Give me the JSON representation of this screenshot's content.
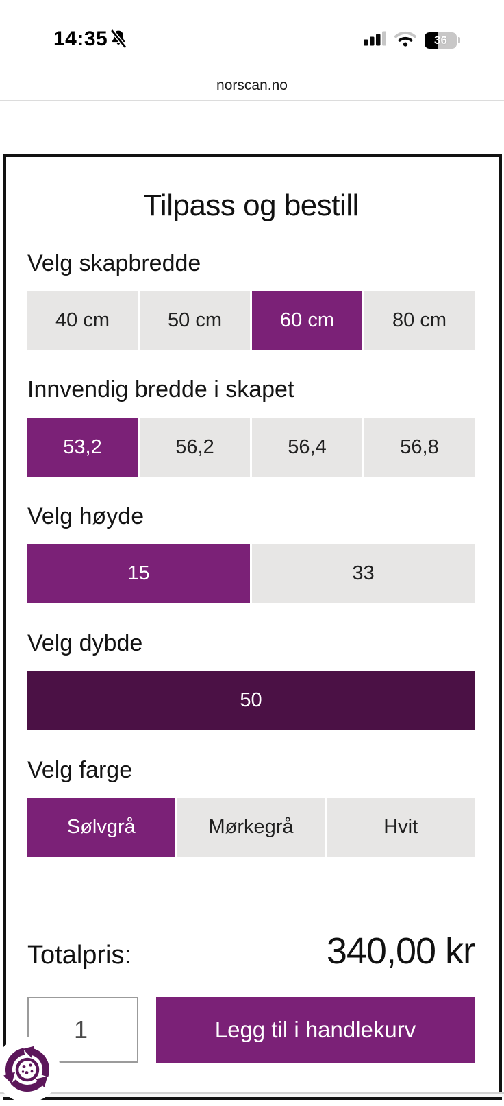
{
  "status_bar": {
    "time": "14:35",
    "battery_percent": "36"
  },
  "browser": {
    "url": "norscan.no"
  },
  "configurator": {
    "title": "Tilpass og bestill",
    "sections": [
      {
        "label": "Velg skapbredde",
        "options": [
          {
            "label": "40 cm",
            "selected": false
          },
          {
            "label": "50 cm",
            "selected": false
          },
          {
            "label": "60 cm",
            "selected": true
          },
          {
            "label": "80 cm",
            "selected": false
          }
        ]
      },
      {
        "label": "Innvendig bredde i skapet",
        "options": [
          {
            "label": "53,2",
            "selected": true
          },
          {
            "label": "56,2",
            "selected": false
          },
          {
            "label": "56,4",
            "selected": false
          },
          {
            "label": "56,8",
            "selected": false
          }
        ]
      },
      {
        "label": "Velg høyde",
        "options": [
          {
            "label": "15",
            "selected": true
          },
          {
            "label": "33",
            "selected": false
          }
        ]
      },
      {
        "label": "Velg dybde",
        "options": [
          {
            "label": "50",
            "selected": true,
            "variant": "dark"
          }
        ]
      },
      {
        "label": "Velg farge",
        "options": [
          {
            "label": "Sølvgrå",
            "selected": true
          },
          {
            "label": "Mørkegrå",
            "selected": false
          },
          {
            "label": "Hvit",
            "selected": false
          }
        ]
      }
    ],
    "total_label": "Totalpris:",
    "total_price": "340,00 kr",
    "quantity_value": "1",
    "add_to_cart_label": "Legg til i handlekurv"
  },
  "icons": {
    "bell_slash": "notifications-muted",
    "signal": "cellular-signal-3-of-4",
    "wifi": "wifi-medium",
    "battery": "battery-36",
    "cookie": "cookie-consent"
  },
  "colors": {
    "accent_purple": "#7b2177",
    "accent_purple_dark": "#4b1145",
    "option_gray": "#e7e6e5",
    "cookie_purple": "#5c165a"
  }
}
